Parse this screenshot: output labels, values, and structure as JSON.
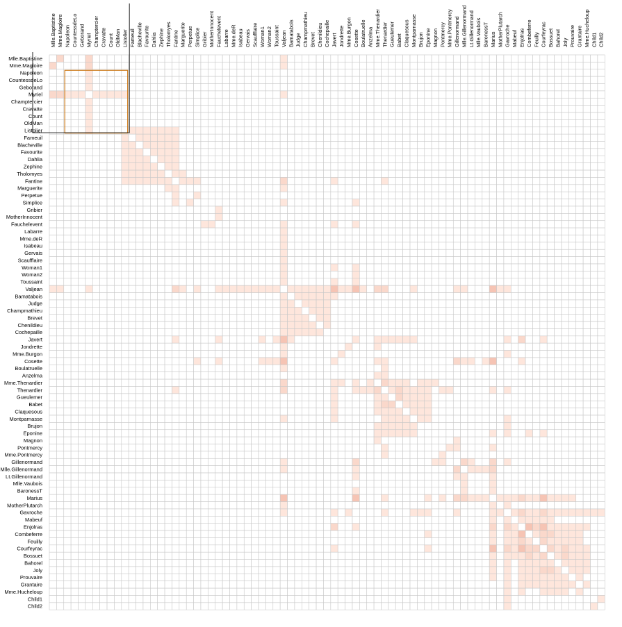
{
  "chart_data": {
    "type": "heatmap",
    "title": "",
    "labels": [
      "Mlle.Baptistine",
      "Mme.Magloire",
      "Napoleon",
      "CountessdeLo",
      "Geborand",
      "Myriel",
      "Champtercier",
      "Cravatte",
      "Count",
      "OldMan",
      "Listolier",
      "Fameuil",
      "Blacheville",
      "Favourite",
      "Dahlia",
      "Zephine",
      "Tholomyes",
      "Fantine",
      "Marguerite",
      "Perpetue",
      "Simplice",
      "Gribier",
      "MotherInnocent",
      "Fauchelevent",
      "Labarre",
      "Mme.deR",
      "Isabeau",
      "Gervais",
      "Scaufflaire",
      "Woman1",
      "Woman2",
      "Toussaint",
      "Valjean",
      "Bamatabois",
      "Judge",
      "Champmathieu",
      "Brevet",
      "Chenildieu",
      "Cochepaille",
      "Javert",
      "Jondrette",
      "Mme.Burgon",
      "Cosette",
      "Boulatruelle",
      "Anzelma",
      "Mme.Thenardier",
      "Thenardier",
      "Gueulemer",
      "Babet",
      "Claquesous",
      "Montparnasse",
      "Brujon",
      "Eponine",
      "Magnon",
      "Pontmercy",
      "Mme.Pontmercy",
      "Gillenormand",
      "Mlle.Gillenormand",
      "Lt.Gillenormand",
      "Mlle.Vaubois",
      "BaronessT",
      "Marius",
      "MotherPlutarch",
      "Gavroche",
      "Mabeuf",
      "Enjolras",
      "Combeferre",
      "Feuilly",
      "Courfeyrac",
      "Bossuet",
      "Bahorel",
      "Joly",
      "Prouvaire",
      "Grantaire",
      "Mme.Hucheloup",
      "Child1",
      "Child2"
    ],
    "links": [
      [
        0,
        1,
        6
      ],
      [
        0,
        5,
        8
      ],
      [
        1,
        5,
        10
      ],
      [
        0,
        32,
        1
      ],
      [
        1,
        32,
        1
      ],
      [
        2,
        5,
        1
      ],
      [
        3,
        5,
        1
      ],
      [
        4,
        5,
        1
      ],
      [
        5,
        6,
        1
      ],
      [
        5,
        7,
        1
      ],
      [
        5,
        8,
        2
      ],
      [
        5,
        9,
        1
      ],
      [
        5,
        10,
        1
      ],
      [
        5,
        32,
        5
      ],
      [
        10,
        11,
        4
      ],
      [
        10,
        12,
        4
      ],
      [
        10,
        13,
        4
      ],
      [
        10,
        14,
        3
      ],
      [
        10,
        15,
        3
      ],
      [
        10,
        16,
        4
      ],
      [
        10,
        17,
        3
      ],
      [
        11,
        12,
        4
      ],
      [
        11,
        13,
        4
      ],
      [
        11,
        14,
        3
      ],
      [
        11,
        15,
        3
      ],
      [
        11,
        16,
        4
      ],
      [
        11,
        17,
        3
      ],
      [
        12,
        13,
        4
      ],
      [
        12,
        14,
        3
      ],
      [
        12,
        15,
        3
      ],
      [
        12,
        16,
        4
      ],
      [
        12,
        17,
        3
      ],
      [
        13,
        14,
        5
      ],
      [
        13,
        15,
        4
      ],
      [
        13,
        16,
        3
      ],
      [
        13,
        17,
        4
      ],
      [
        14,
        15,
        4
      ],
      [
        14,
        16,
        3
      ],
      [
        14,
        17,
        4
      ],
      [
        15,
        16,
        3
      ],
      [
        15,
        17,
        4
      ],
      [
        16,
        17,
        3
      ],
      [
        16,
        18,
        1
      ],
      [
        17,
        18,
        2
      ],
      [
        17,
        32,
        9
      ],
      [
        17,
        39,
        2
      ],
      [
        17,
        46,
        2
      ],
      [
        17,
        19,
        2
      ],
      [
        17,
        20,
        1
      ],
      [
        18,
        32,
        1
      ],
      [
        19,
        20,
        2
      ],
      [
        20,
        32,
        3
      ],
      [
        20,
        42,
        2
      ],
      [
        21,
        23,
        2
      ],
      [
        22,
        23,
        1
      ],
      [
        23,
        32,
        4
      ],
      [
        23,
        39,
        1
      ],
      [
        23,
        42,
        1
      ],
      [
        24,
        32,
        1
      ],
      [
        25,
        32,
        1
      ],
      [
        26,
        32,
        1
      ],
      [
        27,
        32,
        1
      ],
      [
        28,
        32,
        1
      ],
      [
        29,
        32,
        2
      ],
      [
        29,
        39,
        1
      ],
      [
        29,
        42,
        1
      ],
      [
        30,
        32,
        1
      ],
      [
        30,
        42,
        1
      ],
      [
        31,
        32,
        1
      ],
      [
        31,
        42,
        1
      ],
      [
        31,
        39,
        1
      ],
      [
        32,
        33,
        1
      ],
      [
        32,
        34,
        1
      ],
      [
        32,
        35,
        2
      ],
      [
        32,
        36,
        1
      ],
      [
        32,
        37,
        1
      ],
      [
        32,
        38,
        1
      ],
      [
        32,
        39,
        17
      ],
      [
        32,
        42,
        31
      ],
      [
        32,
        45,
        7
      ],
      [
        32,
        46,
        12
      ],
      [
        32,
        50,
        1
      ],
      [
        32,
        61,
        19
      ],
      [
        32,
        56,
        2
      ],
      [
        32,
        57,
        1
      ],
      [
        32,
        63,
        1
      ],
      [
        32,
        62,
        1
      ],
      [
        32,
        40,
        1
      ],
      [
        32,
        41,
        1
      ],
      [
        32,
        43,
        1
      ],
      [
        33,
        34,
        2
      ],
      [
        33,
        35,
        2
      ],
      [
        33,
        36,
        1
      ],
      [
        33,
        37,
        1
      ],
      [
        33,
        38,
        1
      ],
      [
        34,
        35,
        3
      ],
      [
        34,
        36,
        2
      ],
      [
        34,
        37,
        2
      ],
      [
        34,
        38,
        2
      ],
      [
        35,
        36,
        2
      ],
      [
        35,
        37,
        2
      ],
      [
        35,
        38,
        2
      ],
      [
        36,
        37,
        2
      ],
      [
        36,
        38,
        2
      ],
      [
        37,
        38,
        2
      ],
      [
        39,
        42,
        1
      ],
      [
        39,
        45,
        1
      ],
      [
        39,
        46,
        5
      ],
      [
        39,
        47,
        1
      ],
      [
        39,
        48,
        2
      ],
      [
        39,
        49,
        1
      ],
      [
        39,
        50,
        1
      ],
      [
        39,
        33,
        1
      ],
      [
        39,
        63,
        1
      ],
      [
        39,
        68,
        1
      ],
      [
        39,
        65,
        6
      ],
      [
        40,
        41,
        1
      ],
      [
        40,
        45,
        1
      ],
      [
        41,
        63,
        1
      ],
      [
        42,
        45,
        4
      ],
      [
        42,
        46,
        1
      ],
      [
        42,
        56,
        9
      ],
      [
        42,
        57,
        2
      ],
      [
        42,
        58,
        1
      ],
      [
        42,
        61,
        21
      ],
      [
        42,
        60,
        1
      ],
      [
        42,
        65,
        1
      ],
      [
        43,
        46,
        1
      ],
      [
        44,
        45,
        2
      ],
      [
        44,
        46,
        2
      ],
      [
        45,
        46,
        13
      ],
      [
        45,
        47,
        1
      ],
      [
        45,
        48,
        1
      ],
      [
        45,
        49,
        1
      ],
      [
        45,
        51,
        1
      ],
      [
        45,
        52,
        2
      ],
      [
        45,
        53,
        1
      ],
      [
        46,
        47,
        5
      ],
      [
        46,
        48,
        6
      ],
      [
        46,
        49,
        4
      ],
      [
        46,
        50,
        1
      ],
      [
        46,
        51,
        1
      ],
      [
        46,
        52,
        3
      ],
      [
        46,
        54,
        1
      ],
      [
        46,
        55,
        1
      ],
      [
        46,
        61,
        2
      ],
      [
        46,
        63,
        1
      ],
      [
        47,
        48,
        6
      ],
      [
        47,
        49,
        4
      ],
      [
        47,
        50,
        3
      ],
      [
        47,
        51,
        3
      ],
      [
        47,
        52,
        1
      ],
      [
        48,
        49,
        4
      ],
      [
        48,
        50,
        2
      ],
      [
        48,
        51,
        2
      ],
      [
        48,
        52,
        1
      ],
      [
        49,
        50,
        2
      ],
      [
        49,
        51,
        2
      ],
      [
        49,
        52,
        1
      ],
      [
        50,
        51,
        2
      ],
      [
        50,
        52,
        1
      ],
      [
        50,
        63,
        1
      ],
      [
        51,
        63,
        1
      ],
      [
        52,
        61,
        5
      ],
      [
        52,
        63,
        1
      ],
      [
        52,
        66,
        1
      ],
      [
        52,
        68,
        1
      ],
      [
        53,
        56,
        1
      ],
      [
        53,
        45,
        1
      ],
      [
        54,
        56,
        1
      ],
      [
        54,
        61,
        1
      ],
      [
        55,
        54,
        1
      ],
      [
        56,
        57,
        9
      ],
      [
        56,
        58,
        1
      ],
      [
        56,
        61,
        12
      ],
      [
        56,
        63,
        1
      ],
      [
        57,
        58,
        2
      ],
      [
        57,
        59,
        1
      ],
      [
        57,
        60,
        1
      ],
      [
        57,
        61,
        6
      ],
      [
        58,
        61,
        1
      ],
      [
        59,
        61,
        1
      ],
      [
        60,
        61,
        1
      ],
      [
        61,
        62,
        1
      ],
      [
        61,
        63,
        4
      ],
      [
        61,
        64,
        1
      ],
      [
        61,
        65,
        7
      ],
      [
        61,
        66,
        2
      ],
      [
        61,
        67,
        3
      ],
      [
        61,
        68,
        21
      ],
      [
        61,
        69,
        1
      ],
      [
        61,
        70,
        1
      ],
      [
        61,
        71,
        2
      ],
      [
        61,
        72,
        1
      ],
      [
        62,
        63,
        1
      ],
      [
        63,
        64,
        3
      ],
      [
        63,
        65,
        7
      ],
      [
        63,
        66,
        5
      ],
      [
        63,
        67,
        2
      ],
      [
        63,
        68,
        6
      ],
      [
        63,
        69,
        5
      ],
      [
        63,
        70,
        5
      ],
      [
        63,
        71,
        3
      ],
      [
        63,
        72,
        1
      ],
      [
        63,
        73,
        1
      ],
      [
        63,
        74,
        1
      ],
      [
        63,
        75,
        2
      ],
      [
        63,
        76,
        2
      ],
      [
        64,
        65,
        1
      ],
      [
        64,
        66,
        2
      ],
      [
        64,
        67,
        1
      ],
      [
        64,
        68,
        1
      ],
      [
        64,
        69,
        1
      ],
      [
        65,
        66,
        15
      ],
      [
        65,
        67,
        6
      ],
      [
        65,
        68,
        17
      ],
      [
        65,
        69,
        4
      ],
      [
        65,
        70,
        4
      ],
      [
        65,
        71,
        5
      ],
      [
        65,
        72,
        4
      ],
      [
        65,
        73,
        3
      ],
      [
        65,
        74,
        1
      ],
      [
        66,
        67,
        5
      ],
      [
        66,
        68,
        13
      ],
      [
        66,
        69,
        9
      ],
      [
        66,
        70,
        5
      ],
      [
        66,
        71,
        5
      ],
      [
        66,
        72,
        1
      ],
      [
        66,
        73,
        1
      ],
      [
        67,
        68,
        6
      ],
      [
        67,
        69,
        2
      ],
      [
        67,
        70,
        3
      ],
      [
        67,
        71,
        2
      ],
      [
        67,
        72,
        1
      ],
      [
        67,
        73,
        1
      ],
      [
        68,
        69,
        12
      ],
      [
        68,
        70,
        4
      ],
      [
        68,
        71,
        7
      ],
      [
        68,
        72,
        2
      ],
      [
        68,
        73,
        2
      ],
      [
        68,
        74,
        1
      ],
      [
        69,
        70,
        4
      ],
      [
        69,
        71,
        7
      ],
      [
        69,
        72,
        2
      ],
      [
        69,
        73,
        3
      ],
      [
        69,
        74,
        1
      ],
      [
        70,
        71,
        5
      ],
      [
        70,
        72,
        2
      ],
      [
        70,
        73,
        1
      ],
      [
        70,
        74,
        1
      ],
      [
        71,
        72,
        2
      ],
      [
        71,
        73,
        1
      ],
      [
        71,
        74,
        1
      ],
      [
        72,
        73,
        1
      ],
      [
        73,
        74,
        1
      ],
      [
        75,
        76,
        3
      ]
    ],
    "selected_range": [
      "Napoleon",
      "Listolier"
    ],
    "colors": {
      "cell": "#fee6dc",
      "cell_dark": "#f4b6a6",
      "grid": "#c8c8c8",
      "selection": "#cc7a19",
      "bracket": "#222222"
    }
  }
}
